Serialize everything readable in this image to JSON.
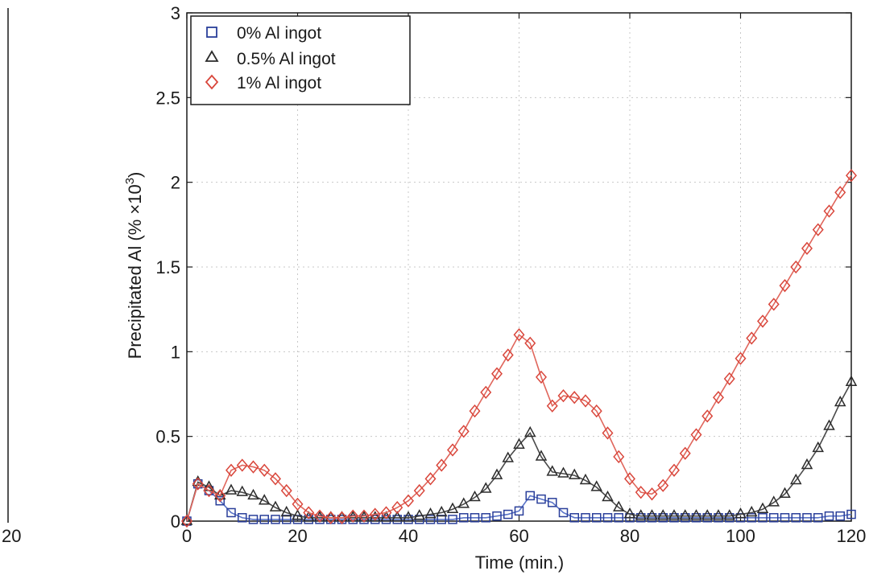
{
  "colors": {
    "series_0": "#2a3f9a",
    "series_0_5": "#2b2b2b",
    "series_1": "#d9463b",
    "line_0": "#5a74c8",
    "line_0_5": "#4a4a4a",
    "line_1": "#e0665c"
  },
  "left_fragment": {
    "tick_label": "20"
  },
  "chart_data": {
    "type": "line",
    "xlabel": "Time (min.)",
    "ylabel_main": "Precipitated Al (% ×10",
    "ylabel_sup": "3",
    "ylabel_end": ")",
    "xlim": [
      0,
      120
    ],
    "ylim": [
      0,
      3
    ],
    "x_ticks": [
      "0",
      "20",
      "40",
      "60",
      "80",
      "100",
      "120"
    ],
    "y_ticks": [
      "0",
      "0.5",
      "1",
      "1.5",
      "2",
      "2.5",
      "3"
    ],
    "grid": true,
    "legend_position": "top-left",
    "x": [
      0,
      2,
      4,
      6,
      8,
      10,
      12,
      14,
      16,
      18,
      20,
      22,
      24,
      26,
      28,
      30,
      32,
      34,
      36,
      38,
      40,
      42,
      44,
      46,
      48,
      50,
      52,
      54,
      56,
      58,
      60,
      62,
      64,
      66,
      68,
      70,
      72,
      74,
      76,
      78,
      80,
      82,
      84,
      86,
      88,
      90,
      92,
      94,
      96,
      98,
      100,
      102,
      104,
      106,
      108,
      110,
      112,
      114,
      116,
      118,
      120
    ],
    "series": [
      {
        "name": "0% Al ingot",
        "marker": "square",
        "values": [
          0,
          0.22,
          0.18,
          0.12,
          0.05,
          0.02,
          0.01,
          0.01,
          0.01,
          0.01,
          0.01,
          0.01,
          0.01,
          0.01,
          0.01,
          0.01,
          0.01,
          0.01,
          0.01,
          0.01,
          0.01,
          0.01,
          0.01,
          0.01,
          0.01,
          0.02,
          0.02,
          0.02,
          0.03,
          0.04,
          0.06,
          0.15,
          0.13,
          0.11,
          0.05,
          0.02,
          0.02,
          0.02,
          0.02,
          0.02,
          0.02,
          0.02,
          0.02,
          0.02,
          0.02,
          0.02,
          0.02,
          0.02,
          0.02,
          0.02,
          0.02,
          0.02,
          0.02,
          0.02,
          0.02,
          0.02,
          0.02,
          0.02,
          0.03,
          0.03,
          0.04
        ]
      },
      {
        "name": "0.5% Al ingot",
        "marker": "triangle",
        "values": [
          0,
          0.23,
          0.2,
          0.15,
          0.18,
          0.17,
          0.15,
          0.12,
          0.08,
          0.05,
          0.03,
          0.02,
          0.02,
          0.02,
          0.02,
          0.02,
          0.02,
          0.02,
          0.02,
          0.02,
          0.02,
          0.03,
          0.04,
          0.05,
          0.07,
          0.1,
          0.14,
          0.19,
          0.27,
          0.37,
          0.45,
          0.52,
          0.38,
          0.29,
          0.28,
          0.27,
          0.24,
          0.2,
          0.14,
          0.08,
          0.04,
          0.03,
          0.03,
          0.03,
          0.03,
          0.03,
          0.03,
          0.03,
          0.03,
          0.03,
          0.04,
          0.05,
          0.07,
          0.11,
          0.16,
          0.24,
          0.33,
          0.43,
          0.56,
          0.7,
          0.82
        ]
      },
      {
        "name": "1% Al ingot",
        "marker": "diamond",
        "values": [
          0,
          0.22,
          0.18,
          0.15,
          0.3,
          0.33,
          0.32,
          0.3,
          0.25,
          0.18,
          0.1,
          0.05,
          0.03,
          0.02,
          0.02,
          0.03,
          0.03,
          0.04,
          0.05,
          0.08,
          0.12,
          0.18,
          0.25,
          0.33,
          0.42,
          0.53,
          0.65,
          0.76,
          0.87,
          0.98,
          1.1,
          1.05,
          0.85,
          0.68,
          0.74,
          0.73,
          0.71,
          0.65,
          0.52,
          0.38,
          0.25,
          0.17,
          0.16,
          0.21,
          0.3,
          0.4,
          0.51,
          0.62,
          0.73,
          0.84,
          0.96,
          1.08,
          1.18,
          1.28,
          1.39,
          1.5,
          1.61,
          1.72,
          1.83,
          1.94,
          2.04
        ]
      }
    ]
  }
}
